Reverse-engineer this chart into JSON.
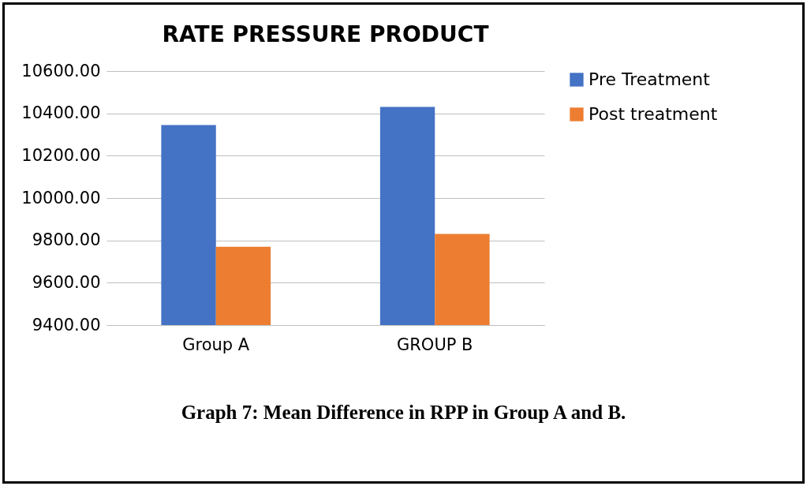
{
  "chart_data": {
    "type": "bar",
    "title": "RATE PRESSURE PRODUCT",
    "categories": [
      "Group A",
      "GROUP B"
    ],
    "series": [
      {
        "name": "Pre Treatment",
        "color": "#4472c4",
        "values": [
          10345,
          10430
        ]
      },
      {
        "name": "Post treatment",
        "color": "#ed7d31",
        "values": [
          9770,
          9830
        ]
      }
    ],
    "ylim": [
      9400,
      10600
    ],
    "yticks": [
      {
        "value": 9400,
        "label": "9400.00"
      },
      {
        "value": 9600,
        "label": "9600.00"
      },
      {
        "value": 9800,
        "label": "9800.00"
      },
      {
        "value": 10000,
        "label": "10000.00"
      },
      {
        "value": 10200,
        "label": "10200.00"
      },
      {
        "value": 10400,
        "label": "10400.00"
      },
      {
        "value": 10600,
        "label": "10600.00"
      }
    ],
    "grid": "y",
    "legend": "right",
    "annotations": [
      "Graph 7: Mean Difference in RPP in Group A and B."
    ]
  }
}
